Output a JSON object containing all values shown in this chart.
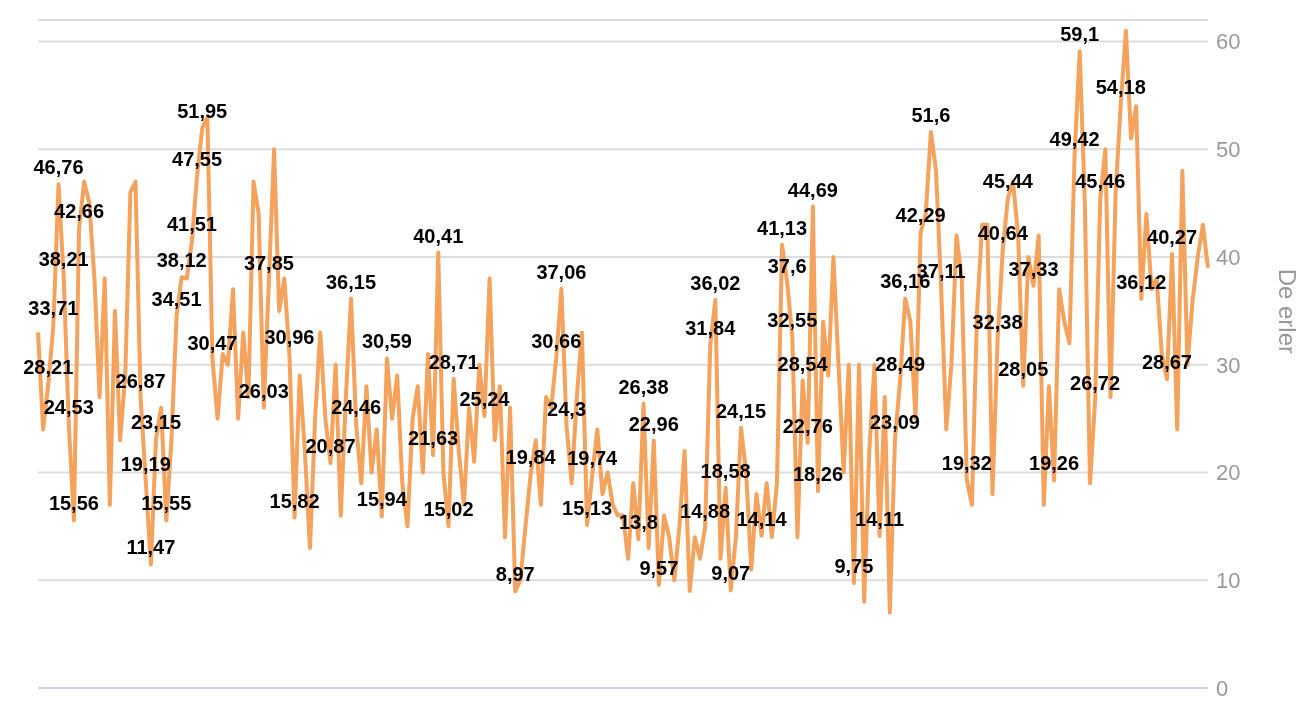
{
  "chart_data": {
    "type": "line",
    "ylabel": "De erler",
    "ylim": [
      0,
      62
    ],
    "yticks": [
      0,
      10,
      20,
      30,
      40,
      50,
      60
    ],
    "grid": "y",
    "legend": false,
    "marker": "none",
    "line_style": "solid",
    "categories": [
      null,
      null,
      null,
      null,
      null,
      null,
      null,
      null,
      null,
      null,
      null,
      null,
      null,
      null,
      null,
      null,
      null,
      null,
      null,
      null,
      null,
      null,
      null,
      null,
      null,
      null,
      null,
      null,
      null,
      null,
      null,
      null,
      null,
      null,
      null,
      null,
      null,
      null,
      null,
      null,
      null,
      null,
      null,
      null,
      null,
      null,
      null,
      null,
      null,
      null,
      null,
      null,
      null,
      null,
      null,
      null,
      null,
      null,
      null,
      null,
      null,
      null,
      null,
      null,
      null,
      null,
      null,
      null,
      null,
      null,
      null,
      null,
      null,
      null,
      null,
      null,
      null,
      null,
      null,
      null,
      null,
      null,
      null,
      null,
      null,
      null,
      null,
      null,
      null,
      null,
      null,
      null,
      null,
      null,
      null,
      null,
      null,
      null,
      null,
      null,
      null,
      null,
      null,
      null,
      null,
      null,
      null,
      null,
      null,
      null,
      null,
      null,
      null,
      null,
      null,
      null,
      null,
      null,
      null,
      null,
      null,
      null,
      null,
      null,
      null,
      null,
      null,
      null,
      null,
      null,
      null,
      null,
      null,
      null,
      null,
      null,
      null,
      null,
      null,
      null,
      null,
      null,
      null,
      null,
      null,
      null,
      null,
      null,
      null,
      null,
      null,
      null,
      null,
      null,
      null,
      null,
      null,
      null,
      null,
      null,
      null,
      null,
      null,
      null,
      null,
      null,
      null,
      null,
      null,
      null,
      null,
      null,
      null,
      null,
      null,
      null,
      null,
      null,
      null,
      null,
      null,
      null,
      null,
      null,
      null,
      null,
      null,
      null,
      null,
      null,
      null,
      null,
      null,
      null,
      null,
      null,
      null,
      null,
      null,
      null,
      null,
      null,
      null,
      null,
      null,
      null,
      null,
      null,
      null,
      null,
      null,
      null,
      null,
      null,
      null,
      null,
      null,
      null,
      null,
      null,
      null,
      null,
      null,
      null,
      null,
      null,
      null,
      null,
      null
    ],
    "color": "#f5a35c",
    "values": [
      33,
      24,
      28.21,
      33.71,
      46.76,
      38.21,
      24.53,
      15.56,
      42.66,
      47,
      45,
      38,
      27,
      38,
      17,
      35,
      23,
      29,
      46,
      47,
      26.87,
      19.19,
      11.47,
      23.15,
      26,
      15.55,
      23,
      34.51,
      38.12,
      38,
      41.51,
      47.55,
      51.95,
      53,
      30.47,
      25,
      31,
      30,
      37,
      25,
      33,
      27,
      47,
      44,
      26.03,
      37.85,
      50,
      35,
      38,
      30.96,
      15.82,
      29,
      22,
      13,
      25,
      33,
      25,
      20.87,
      30,
      16,
      27,
      36.15,
      24.46,
      19,
      28,
      20,
      24,
      15.94,
      30.59,
      25,
      29,
      19,
      15,
      25,
      28,
      20,
      31,
      21.63,
      40.41,
      20,
      15.02,
      28.71,
      22,
      17,
      26,
      21,
      30,
      25.24,
      38,
      23,
      28,
      14,
      26,
      8.97,
      10,
      15,
      19.84,
      23,
      17,
      27,
      26,
      30.66,
      37.06,
      24.3,
      19,
      27,
      33,
      15.13,
      19.74,
      24,
      18,
      20,
      17,
      16,
      16,
      12,
      19,
      13.8,
      26.38,
      13,
      22.96,
      9.57,
      16,
      14,
      10,
      15,
      22,
      9,
      14,
      12,
      14.88,
      31.84,
      36.02,
      12,
      18.58,
      9.07,
      14,
      24.15,
      20,
      11,
      18,
      14.14,
      19,
      14,
      19,
      41.13,
      37.6,
      32.55,
      14,
      28.54,
      22.76,
      44.69,
      18.26,
      34,
      29,
      40,
      30,
      20,
      30,
      9.75,
      30,
      8,
      22,
      30,
      14.11,
      27,
      7,
      23.09,
      28.49,
      36.16,
      34,
      25,
      42.29,
      44,
      51.6,
      48,
      37.11,
      24,
      30,
      42,
      38,
      19.32,
      17,
      35,
      43,
      43,
      18,
      32.38,
      40.64,
      45.44,
      47,
      42,
      28.05,
      40,
      37.33,
      42,
      17,
      28,
      19.26,
      37,
      34,
      32,
      49.42,
      59.1,
      45,
      19,
      26.72,
      45.46,
      50,
      27,
      46,
      54.18,
      61,
      51,
      54,
      36.12,
      44,
      37,
      38,
      31,
      28.67,
      40.27,
      24,
      48,
      30,
      36,
      40,
      43,
      39
    ],
    "value_labels": [
      null,
      null,
      "28,21",
      "33,71",
      "46,76",
      "38,21",
      "24,53",
      "15,56",
      "42,66",
      null,
      null,
      null,
      null,
      null,
      null,
      null,
      null,
      null,
      null,
      null,
      "26,87",
      "19,19",
      "11,47",
      "23,15",
      null,
      "15,55",
      null,
      "34,51",
      "38,12",
      null,
      "41,51",
      "47,55",
      "51,95",
      null,
      "30,47",
      null,
      null,
      null,
      null,
      null,
      null,
      null,
      null,
      null,
      "26,03",
      "37,85",
      null,
      null,
      null,
      "30,96",
      "15,82",
      null,
      null,
      null,
      null,
      null,
      null,
      "20,87",
      null,
      null,
      null,
      "36,15",
      "24,46",
      null,
      null,
      null,
      null,
      "15,94",
      "30,59",
      null,
      null,
      null,
      null,
      null,
      null,
      null,
      null,
      "21,63",
      "40,41",
      null,
      "15,02",
      "28,71",
      null,
      null,
      null,
      null,
      null,
      "25,24",
      null,
      null,
      null,
      null,
      null,
      "8,97",
      null,
      null,
      "19,84",
      null,
      null,
      null,
      null,
      "30,66",
      "37,06",
      "24,3",
      null,
      null,
      null,
      "15,13",
      "19,74",
      null,
      null,
      null,
      null,
      null,
      null,
      null,
      null,
      "13,8",
      "26,38",
      null,
      "22,96",
      "9,57",
      null,
      null,
      null,
      null,
      null,
      null,
      null,
      null,
      "14,88",
      "31,84",
      "36,02",
      null,
      "18,58",
      "9,07",
      null,
      "24,15",
      null,
      null,
      null,
      "14,14",
      null,
      null,
      null,
      "41,13",
      "37,6",
      "32,55",
      null,
      "28,54",
      "22,76",
      "44,69",
      "18,26",
      null,
      null,
      null,
      null,
      null,
      null,
      "9,75",
      null,
      null,
      null,
      null,
      "14,11",
      null,
      null,
      "23,09",
      "28,49",
      "36,16",
      null,
      null,
      "42,29",
      null,
      "51,6",
      null,
      "37,11",
      null,
      null,
      null,
      null,
      "19,32",
      null,
      null,
      null,
      null,
      null,
      "32,38",
      "40,64",
      "45,44",
      null,
      null,
      "28,05",
      null,
      "37,33",
      null,
      null,
      null,
      "19,26",
      null,
      null,
      null,
      "49,42",
      "59,1",
      null,
      null,
      "26,72",
      "45,46",
      null,
      null,
      null,
      "54,18",
      null,
      null,
      null,
      "36,12",
      null,
      null,
      null,
      null,
      "28,67",
      "40,27",
      null,
      null,
      null,
      null,
      null,
      null,
      null
    ]
  }
}
